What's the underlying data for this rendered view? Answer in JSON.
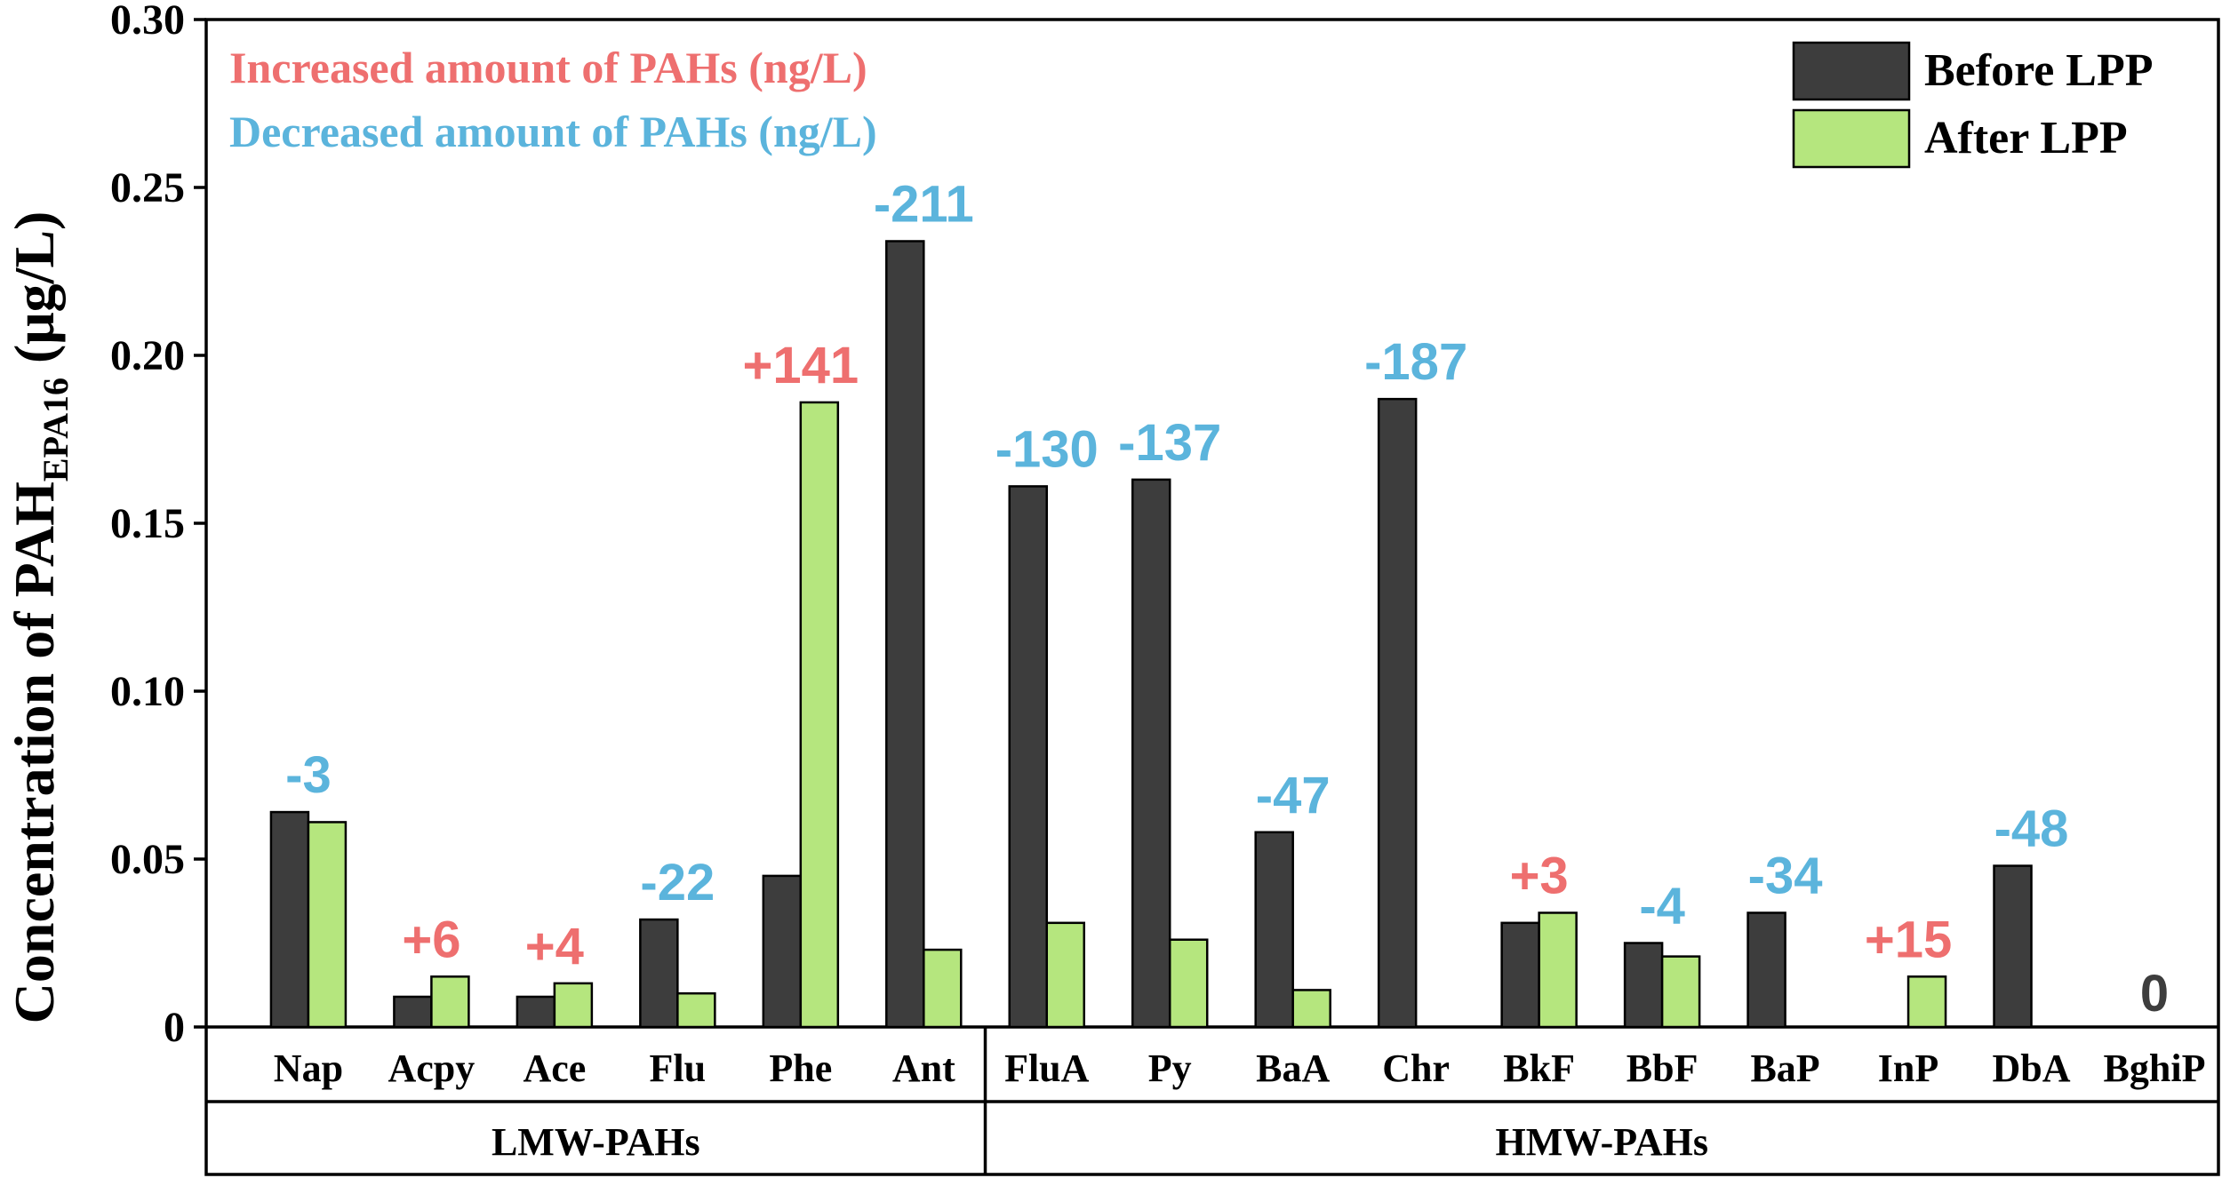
{
  "chart_data": {
    "type": "bar",
    "ylabel_main": "Concentration of PAH",
    "ylabel_sub": "EPA16",
    "ylabel_unit": " (μg/L)",
    "ylim": [
      0,
      0.3
    ],
    "yticks": [
      "0",
      "0.05",
      "0.10",
      "0.15",
      "0.20",
      "0.25",
      "0.30"
    ],
    "categories": [
      "Nap",
      "Acpy",
      "Ace",
      "Flu",
      "Phe",
      "Ant",
      "FluA",
      "Py",
      "BaA",
      "Chr",
      "BkF",
      "BbF",
      "BaP",
      "InP",
      "DbA",
      "BghiP"
    ],
    "groups": [
      {
        "label": "LMW-PAHs",
        "count": 6
      },
      {
        "label": "HMW-PAHs",
        "count": 10
      }
    ],
    "series": [
      {
        "name": "Before LPP",
        "color": "#3d3d3d",
        "values": [
          0.064,
          0.009,
          0.009,
          0.032,
          0.045,
          0.234,
          0.161,
          0.163,
          0.058,
          0.187,
          0.031,
          0.025,
          0.034,
          0,
          0.048,
          0
        ]
      },
      {
        "name": "After LPP",
        "color": "#b5e67e",
        "values": [
          0.061,
          0.015,
          0.013,
          0.01,
          0.186,
          0.023,
          0.031,
          0.026,
          0.011,
          0,
          0.034,
          0.021,
          0,
          0.015,
          0,
          0
        ]
      }
    ],
    "annotations": [
      "-3",
      "+6",
      "+4",
      "-22",
      "+141",
      "-211",
      "-130",
      "-137",
      "-47",
      "-187",
      "+3",
      "-4",
      "-34",
      "+15",
      "-48",
      "0"
    ],
    "annotation_kind": [
      "dec",
      "inc",
      "inc",
      "dec",
      "inc",
      "dec",
      "dec",
      "dec",
      "dec",
      "dec",
      "inc",
      "dec",
      "dec",
      "inc",
      "dec",
      "zero"
    ],
    "notes": [
      {
        "text": "Increased amount of PAHs (ng/L)",
        "kind": "inc"
      },
      {
        "text": "Decreased amount of PAHs (ng/L)",
        "kind": "dec"
      }
    ],
    "colors": {
      "inc": "#ee6f6f",
      "dec": "#5bb4dc",
      "zero": "#3d3d3d"
    },
    "legend_position": "top-right"
  }
}
